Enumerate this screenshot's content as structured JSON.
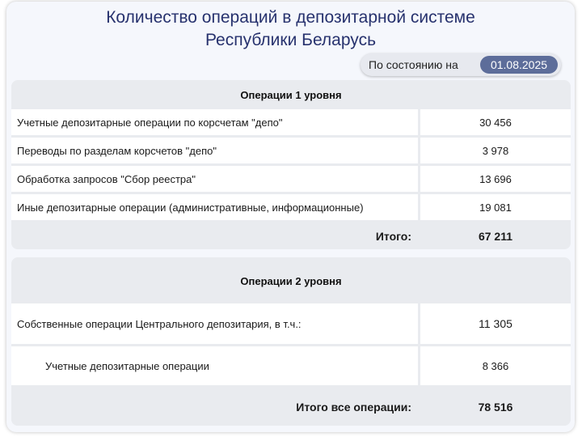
{
  "title_line1": "Количество операций в депозитарной системе",
  "title_line2": "Республики Беларусь",
  "status": {
    "label": "По состоянию на",
    "date": "01.08.2025"
  },
  "level1": {
    "header": "Операции 1 уровня",
    "rows": [
      {
        "label": "Учетные депозитарные операции по корсчетам \"депо\"",
        "value": "30 456"
      },
      {
        "label": "Переводы по разделам корсчетов \"депо\"",
        "value": "3 978"
      },
      {
        "label": "Обработка запросов \"Сбор реестра\"",
        "value": "13 696"
      },
      {
        "label": "Иные депозитарные операции (административные, информационные)",
        "value": "19 081"
      }
    ],
    "total_label": "Итого:",
    "total_value": "67 211"
  },
  "level2": {
    "header": "Операции 2 уровня",
    "rows": [
      {
        "label": "Собственные операции Центрального депозитария, в т.ч.:",
        "value": "11 305"
      },
      {
        "label": "Учетные депозитарные операции",
        "value": "8 366"
      }
    ],
    "total_label": "Итого все операции:",
    "total_value": "78 516"
  }
}
